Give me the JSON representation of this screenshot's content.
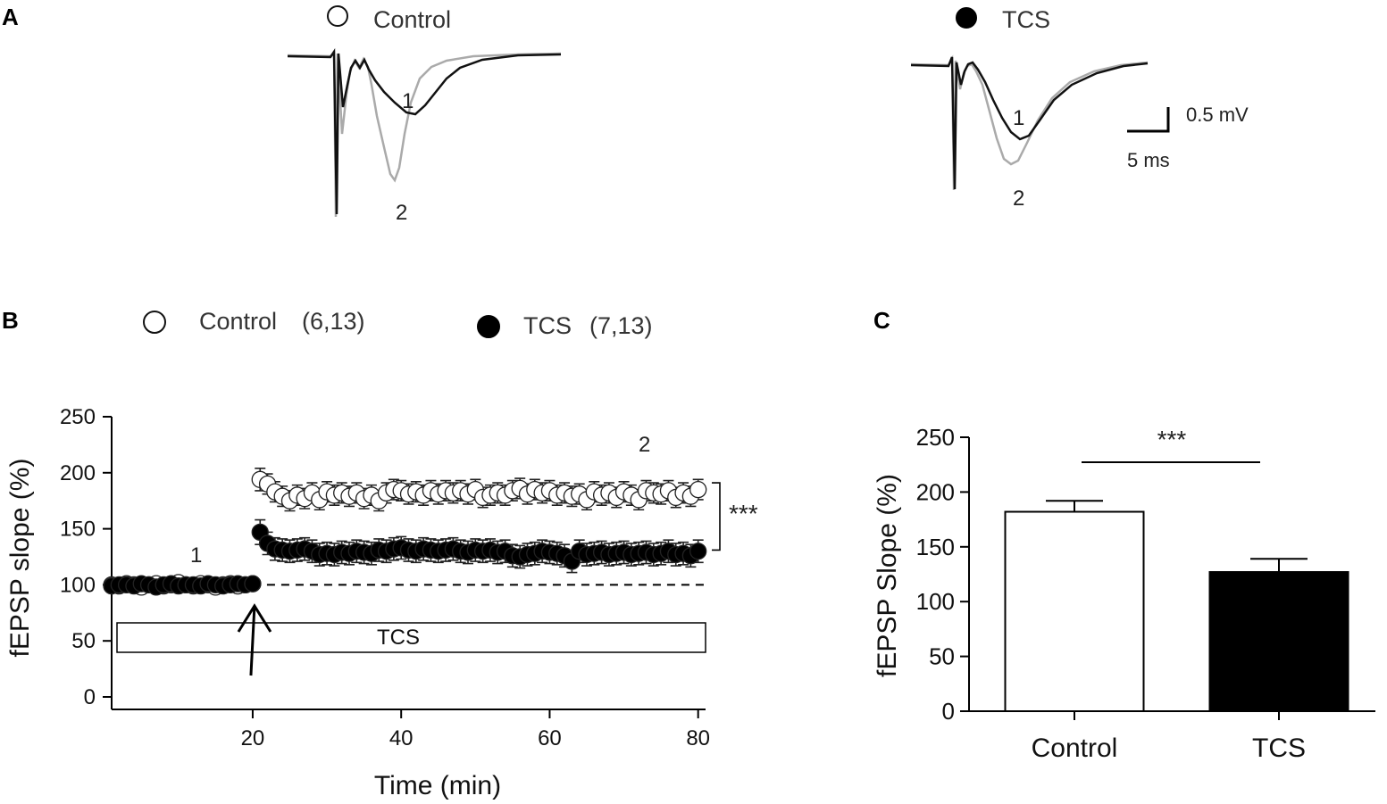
{
  "panels": {
    "a": "A",
    "b": "B",
    "c": "C"
  },
  "panel_a": {
    "control_legend": "Control",
    "tcs_legend": "TCS",
    "trace_label_1": "1",
    "trace_label_2": "2",
    "scale_voltage": "0.5 mV",
    "scale_time": "5 ms",
    "colors": {
      "baseline_trace": "#111111",
      "post_trace": "#aaaaaa"
    }
  },
  "chart_data": [
    {
      "type": "scatter",
      "panel": "B",
      "xlabel": "Time (min)",
      "ylabel": "fEPSP slope (%)",
      "xlim": [
        0,
        81
      ],
      "ylim": [
        0,
        250
      ],
      "xticks": [
        20,
        40,
        60,
        80
      ],
      "yticks": [
        0,
        50,
        100,
        150,
        200,
        250
      ],
      "baseline_value": 100,
      "drug_bar_label": "TCS",
      "drug_bar_range": [
        1,
        81
      ],
      "hfs_time": 20,
      "timepoint_labels": [
        "1",
        "2"
      ],
      "significance": "***",
      "legend": [
        {
          "name": "Control",
          "n": "(6,13)",
          "fill": "#ffffff"
        },
        {
          "name": "TCS",
          "n": "(7,13)",
          "fill": "#000000"
        }
      ],
      "series": [
        {
          "name": "Control",
          "fill": "#ffffff",
          "x": [
            1,
            2,
            3,
            4,
            5,
            6,
            7,
            8,
            9,
            10,
            11,
            12,
            13,
            14,
            15,
            16,
            17,
            18,
            19,
            20,
            21,
            22,
            23,
            24,
            25,
            26,
            27,
            28,
            29,
            30,
            31,
            32,
            33,
            34,
            35,
            36,
            37,
            38,
            39,
            40,
            41,
            42,
            43,
            44,
            45,
            46,
            47,
            48,
            49,
            50,
            51,
            52,
            53,
            54,
            55,
            56,
            57,
            58,
            59,
            60,
            61,
            62,
            63,
            64,
            65,
            66,
            67,
            68,
            69,
            70,
            71,
            72,
            73,
            74,
            75,
            76,
            77,
            78,
            79,
            80
          ],
          "y": [
            100,
            99,
            101,
            100,
            98,
            100,
            101,
            99,
            100,
            102,
            100,
            99,
            101,
            100,
            98,
            100,
            101,
            99,
            100,
            101,
            194,
            190,
            183,
            179,
            175,
            180,
            177,
            182,
            176,
            183,
            180,
            182,
            179,
            182,
            177,
            180,
            175,
            182,
            185,
            184,
            181,
            183,
            180,
            184,
            181,
            184,
            182,
            184,
            181,
            185,
            178,
            180,
            182,
            180,
            184,
            186,
            181,
            185,
            182,
            184,
            180,
            182,
            179,
            181,
            176,
            183,
            180,
            182,
            178,
            183,
            180,
            176,
            184,
            182,
            181,
            184,
            178,
            182,
            179,
            185
          ],
          "err": [
            3,
            3,
            3,
            3,
            3,
            3,
            3,
            3,
            3,
            3,
            3,
            3,
            3,
            3,
            3,
            3,
            3,
            3,
            3,
            3,
            10,
            9,
            9,
            9,
            9,
            9,
            9,
            9,
            9,
            9,
            9,
            9,
            9,
            9,
            9,
            9,
            9,
            9,
            9,
            9,
            9,
            9,
            9,
            9,
            9,
            9,
            9,
            9,
            9,
            9,
            9,
            9,
            9,
            9,
            9,
            9,
            9,
            9,
            9,
            9,
            9,
            9,
            9,
            9,
            9,
            9,
            9,
            9,
            9,
            9,
            9,
            9,
            9,
            9,
            9,
            9,
            9,
            9,
            9,
            9
          ]
        },
        {
          "name": "TCS",
          "fill": "#000000",
          "x": [
            1,
            2,
            3,
            4,
            5,
            6,
            7,
            8,
            9,
            10,
            11,
            12,
            13,
            14,
            15,
            16,
            17,
            18,
            19,
            20,
            21,
            22,
            23,
            24,
            25,
            26,
            27,
            28,
            29,
            30,
            31,
            32,
            33,
            34,
            35,
            36,
            37,
            38,
            39,
            40,
            41,
            42,
            43,
            44,
            45,
            46,
            47,
            48,
            49,
            50,
            51,
            52,
            53,
            54,
            55,
            56,
            57,
            58,
            59,
            60,
            61,
            62,
            63,
            64,
            65,
            66,
            67,
            68,
            69,
            70,
            71,
            72,
            73,
            74,
            75,
            76,
            77,
            78,
            79,
            80
          ],
          "y": [
            99,
            100,
            100,
            99,
            101,
            100,
            98,
            100,
            101,
            99,
            100,
            100,
            99,
            101,
            100,
            99,
            100,
            101,
            100,
            101,
            147,
            137,
            132,
            131,
            130,
            131,
            132,
            130,
            127,
            128,
            127,
            129,
            128,
            130,
            129,
            128,
            131,
            130,
            132,
            133,
            131,
            130,
            132,
            131,
            130,
            131,
            132,
            130,
            129,
            131,
            130,
            131,
            129,
            130,
            126,
            125,
            127,
            128,
            130,
            129,
            128,
            126,
            121,
            130,
            127,
            128,
            129,
            127,
            128,
            129,
            127,
            128,
            129,
            127,
            128,
            130,
            127,
            128,
            126,
            130
          ],
          "err": [
            3,
            3,
            3,
            3,
            3,
            3,
            3,
            3,
            3,
            3,
            3,
            3,
            3,
            3,
            3,
            3,
            3,
            3,
            3,
            3,
            11,
            10,
            10,
            10,
            10,
            10,
            10,
            10,
            10,
            10,
            10,
            10,
            10,
            10,
            10,
            10,
            10,
            10,
            10,
            10,
            10,
            10,
            10,
            10,
            10,
            10,
            10,
            10,
            10,
            10,
            10,
            10,
            10,
            10,
            10,
            10,
            10,
            10,
            10,
            10,
            10,
            10,
            10,
            10,
            10,
            10,
            10,
            10,
            10,
            10,
            10,
            10,
            10,
            10,
            10,
            10,
            10,
            10,
            10,
            10
          ]
        }
      ]
    },
    {
      "type": "bar",
      "panel": "C",
      "categories": [
        "Control",
        "TCS"
      ],
      "values": [
        182,
        127
      ],
      "errors": [
        10,
        12
      ],
      "fills": [
        "#ffffff",
        "#000000"
      ],
      "ylabel": "fEPSP Slope (%)",
      "xlabel": "",
      "ylim": [
        0,
        250
      ],
      "yticks": [
        0,
        50,
        100,
        150,
        200,
        250
      ],
      "significance": "***"
    }
  ]
}
